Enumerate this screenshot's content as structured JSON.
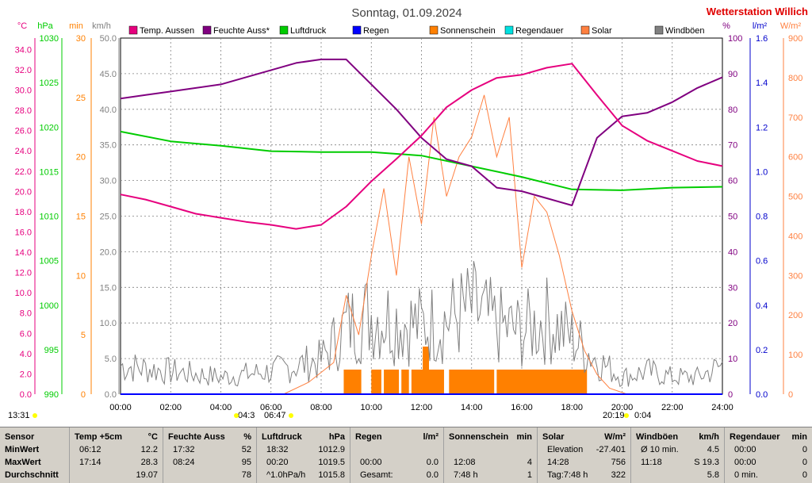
{
  "header": {
    "title": "Sonntag, 01.09.2024",
    "station": "Wetterstation Willich"
  },
  "axes": {
    "left_units": [
      "°C",
      "hPa",
      "min",
      "km/h"
    ],
    "right_units": [
      "%",
      "l/m²",
      "W/m²"
    ],
    "temp_ticks": [
      "0.0",
      "2.0",
      "4.0",
      "6.0",
      "8.0",
      "10.0",
      "12.0",
      "14.0",
      "16.0",
      "18.0",
      "20.0",
      "22.0",
      "24.0",
      "26.0",
      "28.0",
      "30.0",
      "32.0",
      "34.0"
    ],
    "hpa_ticks": [
      "990",
      "995",
      "1000",
      "1005",
      "1010",
      "1015",
      "1020",
      "1025",
      "1030"
    ],
    "min_ticks": [
      "0",
      "5",
      "10",
      "15",
      "20",
      "25",
      "30"
    ],
    "kmh_ticks": [
      "0.0",
      "5.0",
      "10.0",
      "15.0",
      "20.0",
      "25.0",
      "30.0",
      "35.0",
      "40.0",
      "45.0",
      "50.0"
    ],
    "pct_ticks": [
      "0",
      "10",
      "20",
      "30",
      "40",
      "50",
      "60",
      "70",
      "80",
      "90",
      "100"
    ],
    "rain_ticks": [
      "0.0",
      "0.2",
      "0.4",
      "0.6",
      "0.8",
      "1.0",
      "1.2",
      "1.4",
      "1.6"
    ],
    "solar_ticks": [
      "0",
      "100",
      "200",
      "300",
      "400",
      "500",
      "600",
      "700",
      "800",
      "900"
    ],
    "time_ticks": [
      "00:00",
      "02:00",
      "04:00",
      "06:00",
      "08:00",
      "10:00",
      "12:00",
      "14:00",
      "16:00",
      "18:00",
      "20:00",
      "22:00",
      "24:00"
    ],
    "markers": [
      "13:31",
      "04:3",
      "06:47",
      "20:19",
      "0:04"
    ]
  },
  "legend": [
    {
      "label": "Temp. Aussen",
      "color": "#e6007e"
    },
    {
      "label": "Feuchte Auss*",
      "color": "#800080"
    },
    {
      "label": "Luftdruck",
      "color": "#00cc00"
    },
    {
      "label": "Regen",
      "color": "#0000ff"
    },
    {
      "label": "Sonnenschein",
      "color": "#ff8000"
    },
    {
      "label": "Regendauer",
      "color": "#00e0e0"
    },
    {
      "label": "Solar",
      "color": "#ff8040"
    },
    {
      "label": "Windböen",
      "color": "#808080"
    }
  ],
  "chart_data": {
    "type": "line",
    "x_range": [
      "00:00",
      "24:00"
    ],
    "series": [
      {
        "name": "Temp. Aussen",
        "unit": "°C",
        "color": "#e6007e",
        "x": [
          0,
          1,
          2,
          3,
          4,
          5,
          6,
          7,
          8,
          9,
          10,
          11,
          12,
          13,
          14,
          15,
          16,
          17,
          18,
          19,
          20,
          21,
          22,
          23,
          24
        ],
        "values": [
          19.7,
          19.2,
          18.5,
          17.8,
          17.4,
          17.0,
          16.7,
          16.3,
          16.7,
          18.5,
          21.0,
          23.2,
          25.5,
          28.3,
          30.0,
          31.2,
          31.5,
          32.2,
          32.6,
          29.5,
          26.5,
          25.0,
          24.0,
          23.0,
          22.5
        ]
      },
      {
        "name": "Feuchte Auss*",
        "unit": "%",
        "color": "#800080",
        "x": [
          0,
          1,
          2,
          3,
          4,
          5,
          6,
          7,
          8,
          9,
          10,
          11,
          12,
          13,
          14,
          15,
          16,
          17,
          18,
          19,
          20,
          21,
          22,
          23,
          24
        ],
        "values": [
          83,
          84,
          85,
          86,
          87,
          89,
          91,
          93,
          94,
          94,
          87,
          80,
          72,
          66,
          64,
          58,
          57,
          55,
          53,
          72,
          78,
          79,
          82,
          86,
          89
        ]
      },
      {
        "name": "Luftdruck",
        "unit": "hPa",
        "color": "#00cc00",
        "x": [
          0,
          2,
          4,
          6,
          8,
          10,
          12,
          14,
          16,
          18,
          20,
          22,
          24
        ],
        "values": [
          1019.5,
          1018.4,
          1017.9,
          1017.3,
          1017.2,
          1017.2,
          1016.8,
          1015.6,
          1014.4,
          1013.0,
          1012.9,
          1013.2,
          1013.3
        ]
      },
      {
        "name": "Regen",
        "unit": "l/m²",
        "color": "#0000ff",
        "x": [
          0,
          24
        ],
        "values": [
          0.0,
          0.0
        ]
      },
      {
        "name": "Solar",
        "unit": "W/m²",
        "color": "#ff8040",
        "x": [
          6.5,
          7.5,
          8.5,
          9.0,
          9.5,
          10.0,
          10.5,
          11.0,
          11.5,
          12.0,
          12.5,
          13.0,
          13.5,
          14.0,
          14.5,
          15.0,
          15.5,
          16.0,
          16.5,
          17.0,
          17.5,
          18.0,
          18.5,
          19.0,
          19.5,
          20.2
        ],
        "values": [
          0,
          30,
          80,
          250,
          150,
          350,
          520,
          300,
          600,
          430,
          700,
          500,
          600,
          650,
          756,
          600,
          700,
          320,
          500,
          460,
          350,
          210,
          110,
          50,
          15,
          0
        ]
      },
      {
        "name": "Windböen",
        "unit": "km/h",
        "color": "#808080",
        "x": [
          0,
          2,
          4,
          6,
          8,
          9,
          10,
          11,
          12,
          13,
          14,
          15,
          16,
          17,
          18,
          19,
          20,
          21,
          22,
          23,
          24
        ],
        "values": [
          5,
          4,
          3,
          4,
          6,
          12,
          14,
          13,
          12,
          13,
          15,
          12,
          11,
          13,
          10,
          6,
          3,
          4,
          3,
          3,
          5
        ]
      }
    ],
    "sunshine_periods": [
      [
        8.9,
        9.6
      ],
      [
        10.0,
        10.4
      ],
      [
        10.5,
        11.1
      ],
      [
        11.2,
        11.5
      ],
      [
        11.6,
        12.9
      ],
      [
        13.1,
        14.9
      ],
      [
        15.0,
        18.6
      ]
    ]
  },
  "stats": {
    "sensor": {
      "header": "Sensor",
      "rows": [
        "MinWert",
        "MaxWert",
        "Durchschnitt"
      ]
    },
    "temp": {
      "header": "Temp +5cm",
      "unit": "°C",
      "rows": [
        [
          "06:12",
          "12.2"
        ],
        [
          "17:14",
          "28.3"
        ],
        [
          "",
          "19.07"
        ]
      ]
    },
    "feuchte": {
      "header": "Feuchte Auss",
      "unit": "%",
      "rows": [
        [
          "17:32",
          "52"
        ],
        [
          "08:24",
          "95"
        ],
        [
          "",
          "78"
        ]
      ]
    },
    "luftdruck": {
      "header": "Luftdruck",
      "unit": "hPa",
      "rows": [
        [
          "18:32",
          "1012.9"
        ],
        [
          "00:20",
          "1019.5"
        ],
        [
          "^1.0hPa/h",
          "1015.8"
        ]
      ]
    },
    "regen": {
      "header": "Regen",
      "unit": "l/m²",
      "rows": [
        [
          "",
          ""
        ],
        [
          "00:00",
          "0.0"
        ],
        [
          "Gesamt:",
          "0.0"
        ]
      ]
    },
    "sonnenschein": {
      "header": "Sonnenschein",
      "unit": "min",
      "rows": [
        [
          "",
          ""
        ],
        [
          "12:08",
          "4"
        ],
        [
          "7:48 h",
          "1"
        ]
      ]
    },
    "solar": {
      "header": "Solar",
      "unit": "W/m²",
      "rows": [
        [
          "Elevation",
          "-27.401"
        ],
        [
          "14:28",
          "756"
        ],
        [
          "Tag:7:48 h",
          "322"
        ]
      ]
    },
    "windboeen": {
      "header": "Windböen",
      "unit": "km/h",
      "rows": [
        [
          "Ø 10 min.",
          "4.5"
        ],
        [
          "11:18",
          "S 19.3"
        ],
        [
          "",
          "5.8"
        ]
      ]
    },
    "regendauer": {
      "header": "Regendauer",
      "unit": "min",
      "rows": [
        [
          "00:00",
          "0"
        ],
        [
          "00:00",
          "0"
        ],
        [
          "0 min.",
          "0"
        ]
      ]
    }
  }
}
